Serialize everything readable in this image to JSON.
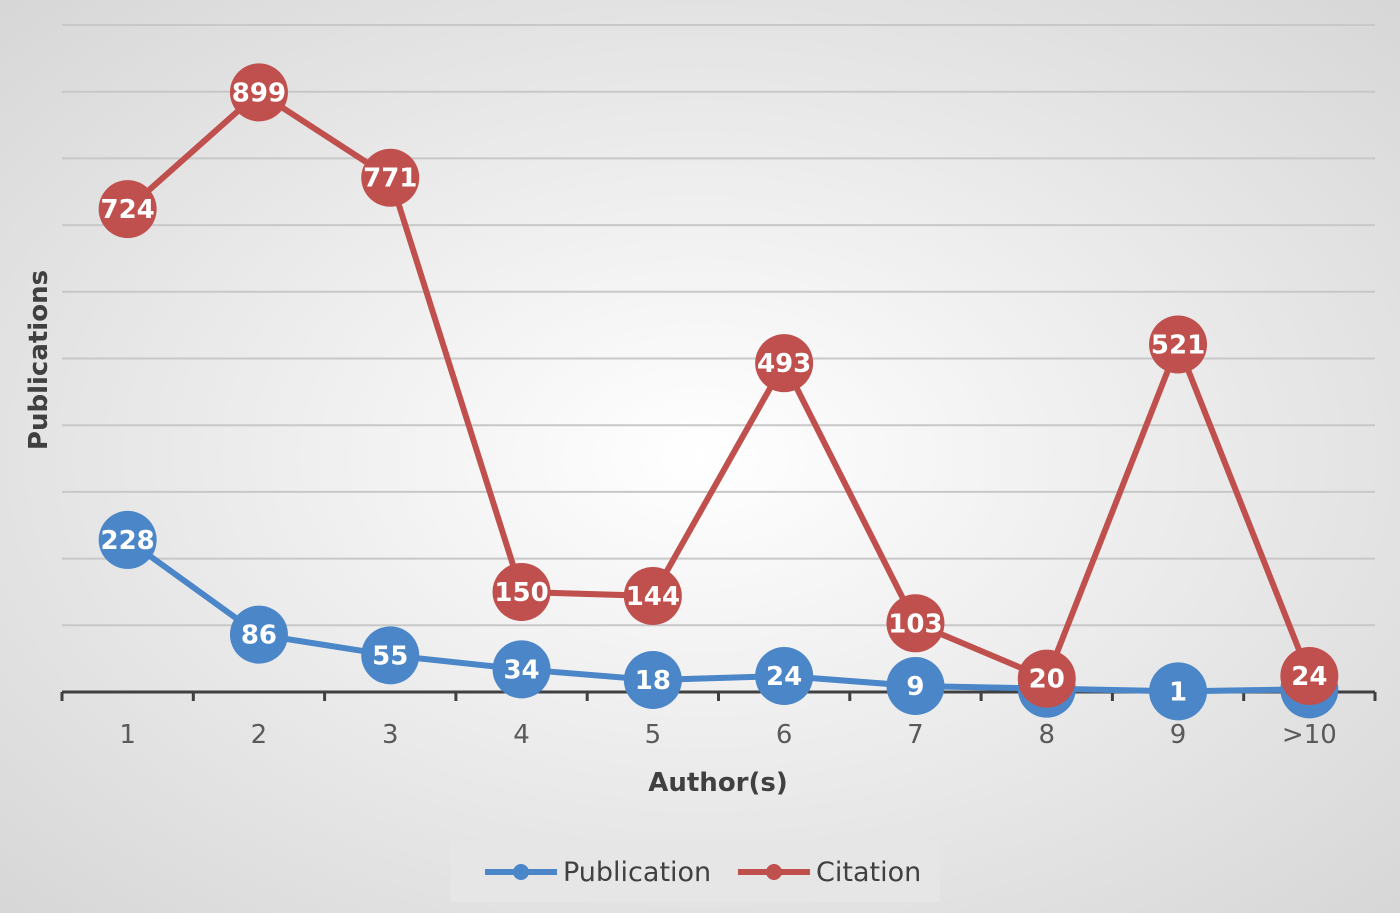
{
  "chart_data": {
    "type": "line",
    "categories": [
      "1",
      "2",
      "3",
      "4",
      "5",
      "6",
      "7",
      "8",
      "9",
      ">10"
    ],
    "series": [
      {
        "name": "Publication",
        "color": "#4a86c8",
        "values": [
          228,
          86,
          55,
          34,
          18,
          24,
          9,
          5,
          1,
          4
        ]
      },
      {
        "name": "Citation",
        "color": "#c0504d",
        "values": [
          724,
          899,
          771,
          150,
          144,
          493,
          103,
          20,
          521,
          24
        ]
      }
    ],
    "xlabel": "Author(s)",
    "ylabel": "Publications",
    "ylim": [
      0,
      1000
    ],
    "y_tick_labels_shown": false,
    "grid": true,
    "data_labels": true,
    "legend_position": "bottom",
    "background_color": "#e9e9e9",
    "gridline_color": "#c8c8c8"
  }
}
